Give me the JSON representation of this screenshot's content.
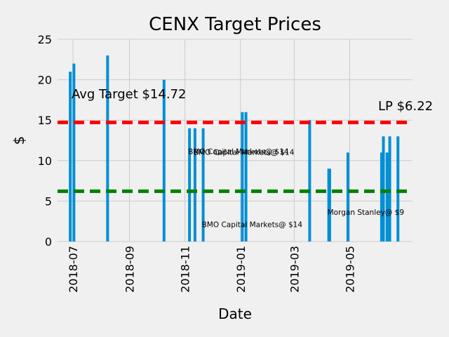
{
  "chart_data": {
    "type": "bar",
    "title": "CENX Target Prices",
    "xlabel": "Date",
    "ylabel": "$",
    "ylim": [
      0,
      25
    ],
    "xlim": [
      "2018-06-14",
      "2019-07-09"
    ],
    "yticks": [
      0,
      5,
      10,
      15,
      20,
      25
    ],
    "xticks": [
      "2018-07",
      "2018-09",
      "2018-11",
      "2019-01",
      "2019-03",
      "2019-05"
    ],
    "grid": true,
    "bar_color": "#008fd5",
    "bars": [
      {
        "date": "2018-06-28",
        "value": 21
      },
      {
        "date": "2018-07-02",
        "value": 22
      },
      {
        "date": "2018-08-08",
        "value": 23
      },
      {
        "date": "2018-10-09",
        "value": 20
      },
      {
        "date": "2018-11-06",
        "value": 14
      },
      {
        "date": "2018-11-12",
        "value": 14
      },
      {
        "date": "2018-11-21",
        "value": 14
      },
      {
        "date": "2019-01-03",
        "value": 16
      },
      {
        "date": "2019-01-07",
        "value": 16
      },
      {
        "date": "2019-03-18",
        "value": 15
      },
      {
        "date": "2019-04-08",
        "value": 9
      },
      {
        "date": "2019-04-09",
        "value": 9
      },
      {
        "date": "2019-04-29",
        "value": 11
      },
      {
        "date": "2019-06-05",
        "value": 11
      },
      {
        "date": "2019-06-07",
        "value": 13
      },
      {
        "date": "2019-06-11",
        "value": 11
      },
      {
        "date": "2019-06-14",
        "value": 13
      },
      {
        "date": "2019-06-23",
        "value": 13
      }
    ],
    "reference_lines": [
      {
        "value": 14.72,
        "color": "#ff0000",
        "label": "Avg Target $14.72"
      },
      {
        "value": 6.22,
        "color": "#008000",
        "label": "LP $6.22"
      }
    ],
    "annotations": [
      {
        "text": "BMO Capital Markets@ $14",
        "date": "2018-11-06",
        "y": 10.8
      },
      {
        "text": "BMO Capital Markets@ $14",
        "date": "2018-11-12",
        "y": 10.7
      },
      {
        "text": "BMO Capital Markets@ $14",
        "date": "2018-11-21",
        "y": 1.8
      },
      {
        "text": "Morgan Stanley@ $9",
        "date": "2019-04-08",
        "y": 3.3
      }
    ]
  }
}
